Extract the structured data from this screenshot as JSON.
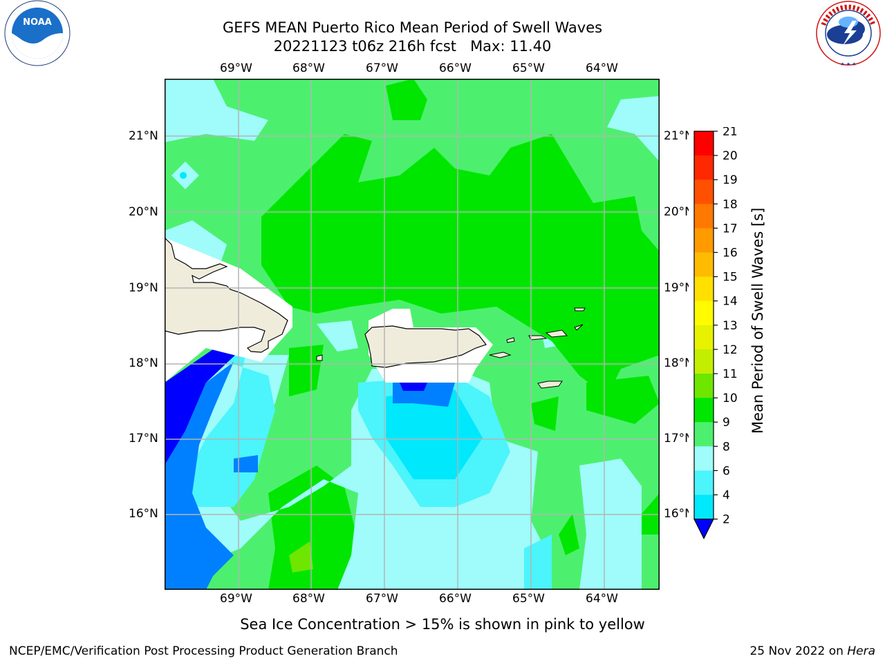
{
  "header": {
    "title_line1": "GEFS MEAN Puerto Rico Mean Period of Swell Waves",
    "title_line2": "20221123 t06z 216h fcst   Max: 11.40"
  },
  "logos": {
    "left": "NOAA",
    "right": "NATIONAL WEATHER SERVICE"
  },
  "map": {
    "lon_labels": [
      "69°W",
      "68°W",
      "67°W",
      "66°W",
      "65°W",
      "64°W"
    ],
    "lat_labels": [
      "21°N",
      "20°N",
      "19°N",
      "18°N",
      "17°N",
      "16°N"
    ]
  },
  "colorbar": {
    "label": "Mean Period of Swell Waves [s]",
    "ticks": [
      "21",
      "20",
      "19",
      "18",
      "17",
      "16",
      "15",
      "14",
      "13",
      "12",
      "11",
      "10",
      "9",
      "8",
      "6",
      "4",
      "2"
    ],
    "colors": [
      "#ff0000",
      "#ff2800",
      "#ff5000",
      "#ff7800",
      "#ff9a00",
      "#ffbb00",
      "#ffe000",
      "#fffb00",
      "#e6f200",
      "#c4ee00",
      "#6ee600",
      "#00e600",
      "#4cf06e",
      "#9ffcfa",
      "#4cf4fc",
      "#00e8fc",
      "#0080ff",
      "#0000ff"
    ]
  },
  "subtitle": "Sea Ice Concentration > 15% is shown in pink to yellow",
  "footer": {
    "left": "NCEP/EMC/Verification Post Processing Product Generation Branch",
    "date": "25 Nov 2022 on",
    "machine": "Hera"
  }
}
